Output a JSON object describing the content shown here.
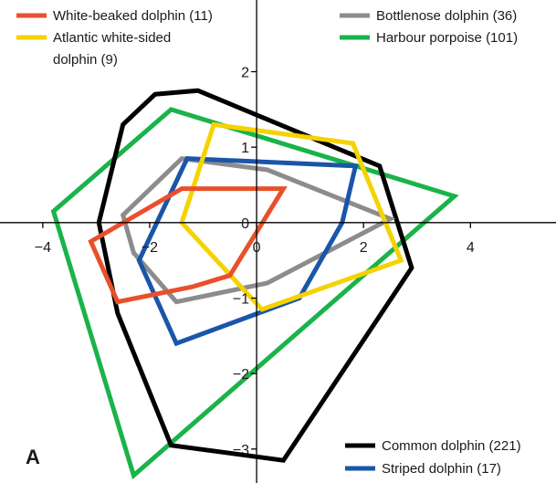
{
  "chart_data": {
    "type": "line",
    "panel_label": "A",
    "title": "",
    "xlabel": "",
    "ylabel": "",
    "xlim": [
      -4.8,
      5.6
    ],
    "ylim": [
      -3.45,
      2.95
    ],
    "xticks": [
      -4,
      -2,
      0,
      2,
      4
    ],
    "yticks": [
      -3,
      -2,
      -1,
      0,
      1,
      2
    ],
    "xtick_labels": [
      "−4",
      "−2",
      "0",
      "2",
      "4"
    ],
    "ytick_labels": [
      "−3",
      "−2",
      "−1",
      "0",
      "1",
      "2"
    ],
    "grid": false,
    "legend": [
      {
        "label": "White-beaked dolphin (11)",
        "lines": [
          "White-beaked dolphin (11)"
        ],
        "color": "#e8502b",
        "position": "top-left"
      },
      {
        "label": "Atlantic white-sided dolphin (9)",
        "lines": [
          "Atlantic white-sided",
          "dolphin (9)"
        ],
        "color": "#f5d200",
        "position": "top-left"
      },
      {
        "label": "Bottlenose dolphin (36)",
        "lines": [
          "Bottlenose dolphin (36)"
        ],
        "color": "#8c8c8c",
        "position": "top-right"
      },
      {
        "label": "Harbour porpoise (101)",
        "lines": [
          "Harbour porpoise (101)"
        ],
        "color": "#1ab34a",
        "position": "top-right"
      },
      {
        "label": "Common dolphin (221)",
        "lines": [
          "Common dolphin (221)"
        ],
        "color": "#000000",
        "position": "bottom-right"
      },
      {
        "label": "Striped dolphin (17)",
        "lines": [
          "Striped dolphin (17)"
        ],
        "color": "#1a56a8",
        "position": "bottom-right"
      }
    ],
    "series": [
      {
        "name": "Harbour porpoise (101)",
        "color": "#1ab34a",
        "points": [
          [
            -3.8,
            0.15
          ],
          [
            -1.6,
            1.5
          ],
          [
            3.7,
            0.35
          ],
          [
            -2.3,
            -3.35
          ]
        ]
      },
      {
        "name": "Common dolphin (221)",
        "color": "#000000",
        "points": [
          [
            -1.9,
            1.7
          ],
          [
            -1.1,
            1.75
          ],
          [
            2.3,
            0.75
          ],
          [
            2.9,
            -0.6
          ],
          [
            0.5,
            -3.15
          ],
          [
            -1.6,
            -2.95
          ],
          [
            -2.6,
            -1.2
          ],
          [
            -2.95,
            0.0
          ],
          [
            -2.5,
            1.3
          ]
        ]
      },
      {
        "name": "Bottlenose dolphin (36)",
        "color": "#8c8c8c",
        "points": [
          [
            -2.5,
            0.1
          ],
          [
            -1.4,
            0.85
          ],
          [
            0.2,
            0.7
          ],
          [
            2.5,
            0.05
          ],
          [
            0.2,
            -0.8
          ],
          [
            -1.5,
            -1.05
          ],
          [
            -2.3,
            -0.4
          ]
        ]
      },
      {
        "name": "Striped dolphin (17)",
        "color": "#1a56a8",
        "points": [
          [
            -1.3,
            0.85
          ],
          [
            1.85,
            0.75
          ],
          [
            1.6,
            0.0
          ],
          [
            0.8,
            -1.0
          ],
          [
            -1.5,
            -1.6
          ],
          [
            -2.2,
            -0.5
          ]
        ]
      },
      {
        "name": "Atlantic white-sided dolphin (9)",
        "color": "#f5d200",
        "points": [
          [
            -0.8,
            1.3
          ],
          [
            1.8,
            1.05
          ],
          [
            2.7,
            -0.5
          ],
          [
            0.1,
            -1.15
          ],
          [
            -1.4,
            0.0
          ]
        ]
      },
      {
        "name": "White-beaked dolphin (11)",
        "color": "#e8502b",
        "points": [
          [
            -1.4,
            0.45
          ],
          [
            0.5,
            0.45
          ],
          [
            -0.5,
            -0.7
          ],
          [
            -1.2,
            -0.85
          ],
          [
            -2.6,
            -1.05
          ],
          [
            -3.1,
            -0.25
          ]
        ]
      }
    ]
  }
}
